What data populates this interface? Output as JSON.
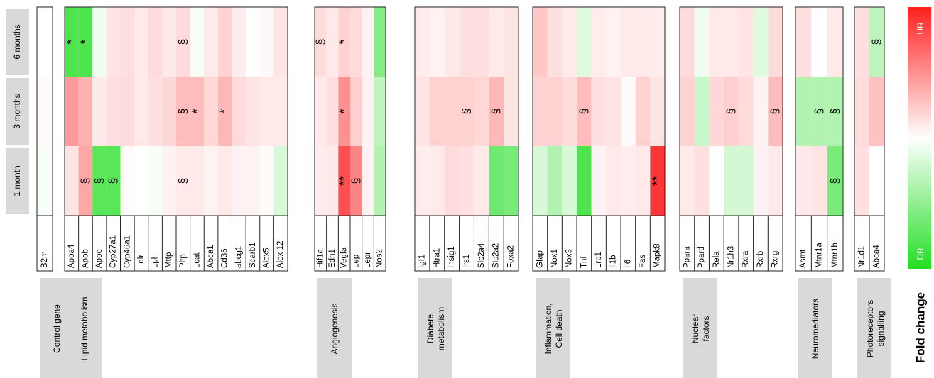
{
  "chart_data": {
    "type": "heatmap",
    "time_points": [
      "6 months",
      "3 months",
      "1 month"
    ],
    "control": {
      "group": "Control gene",
      "genes": [
        "B2m"
      ],
      "values": [
        [
          0.0
        ],
        [
          0.02
        ],
        [
          -0.03
        ]
      ]
    },
    "groups": [
      {
        "name": "Lipid metabolism",
        "genes": [
          "Apoa4",
          "Apob",
          "Apoe",
          "Cyp27a1",
          "Cyp46a1",
          "Ldlr",
          "Lpl",
          "Mttp",
          "Pltp",
          "Lcat",
          "Abca1",
          "Cd36",
          "abcg1",
          "Scarb1",
          "Alox5",
          "Alox 12"
        ],
        "values": [
          [
            -0.8,
            -0.8,
            -0.06,
            0.12,
            0.15,
            0.1,
            0.16,
            0.1,
            0.16,
            -0.04,
            0.1,
            0.2,
            0.08,
            0.0,
            0.03,
            0.12
          ],
          [
            0.45,
            0.35,
            0.1,
            0.14,
            0.16,
            0.1,
            0.14,
            0.18,
            0.3,
            0.3,
            0.18,
            0.32,
            0.16,
            0.12,
            0.1,
            0.1
          ],
          [
            0.12,
            0.4,
            -0.75,
            -0.75,
            0.02,
            0.0,
            -0.04,
            0.06,
            0.1,
            0.1,
            0.06,
            0.1,
            0.06,
            0.06,
            0.02,
            -0.18
          ]
        ],
        "annotations": [
          {
            "row": 0,
            "col": 0,
            "text": "*"
          },
          {
            "row": 0,
            "col": 1,
            "text": "*"
          },
          {
            "row": 0,
            "col": 8,
            "text": "§"
          },
          {
            "row": 1,
            "col": 8,
            "text": "§"
          },
          {
            "row": 1,
            "col": 9,
            "text": "*"
          },
          {
            "row": 1,
            "col": 11,
            "text": "*"
          },
          {
            "row": 2,
            "col": 1,
            "text": "§"
          },
          {
            "row": 2,
            "col": 2,
            "text": "§"
          },
          {
            "row": 2,
            "col": 3,
            "text": "§"
          },
          {
            "row": 2,
            "col": 8,
            "text": "§"
          }
        ]
      },
      {
        "name": "Angiogenesis",
        "genes": [
          "Hif1a",
          "Edn1",
          "Vegfa",
          "Lep",
          "Lepr",
          "Nos2"
        ],
        "values": [
          [
            0.16,
            0.1,
            0.2,
            0.16,
            0.06,
            -0.55
          ],
          [
            0.1,
            0.14,
            0.5,
            0.22,
            0.06,
            -0.3
          ],
          [
            0.08,
            0.1,
            0.78,
            0.55,
            0.06,
            -0.35
          ]
        ],
        "annotations": [
          {
            "row": 0,
            "col": 0,
            "text": "§"
          },
          {
            "row": 0,
            "col": 2,
            "text": "*"
          },
          {
            "row": 1,
            "col": 2,
            "text": "*"
          },
          {
            "row": 2,
            "col": 2,
            "text": "**"
          },
          {
            "row": 2,
            "col": 3,
            "text": "§"
          }
        ]
      },
      {
        "name": "Diabete metabolism",
        "genes": [
          "Igf1",
          "Htra1",
          "Insig1",
          "Irs1",
          "Slc2a4",
          "Slc2a2",
          "Foxa2"
        ],
        "values": [
          [
            0.08,
            0.06,
            0.1,
            0.14,
            0.14,
            0.1,
            0.12
          ],
          [
            0.12,
            0.2,
            0.2,
            0.2,
            0.18,
            0.32,
            0.12
          ],
          [
            0.08,
            0.1,
            0.16,
            0.14,
            0.1,
            -0.65,
            -0.6
          ]
        ],
        "annotations": [
          {
            "row": 1,
            "col": 3,
            "text": "§"
          },
          {
            "row": 1,
            "col": 5,
            "text": "§"
          }
        ]
      },
      {
        "name": "Inflammation, Cell death",
        "genes": [
          "Gfap",
          "Nox1",
          "Nox3",
          "Tnf",
          "Lrp1",
          "Il1b",
          "Il6",
          "Fas",
          "Mapk8"
        ],
        "values": [
          [
            0.25,
            0.14,
            0.1,
            -0.14,
            0.08,
            0.06,
            0.1,
            0.1,
            0.08
          ],
          [
            0.2,
            0.2,
            0.16,
            0.3,
            0.14,
            0.12,
            0.02,
            0.2,
            0.12
          ],
          [
            -0.18,
            -0.35,
            -0.18,
            -0.8,
            0.06,
            0.1,
            0.08,
            0.1,
            0.9
          ]
        ],
        "annotations": [
          {
            "row": 1,
            "col": 3,
            "text": "§"
          },
          {
            "row": 2,
            "col": 8,
            "text": "**"
          }
        ]
      },
      {
        "name": "Nuclear factors",
        "genes": [
          "Ppara",
          "Ppard",
          "Rela",
          "Nr1h3",
          "Rxra",
          "Rxrb",
          "Rxrg"
        ],
        "values": [
          [
            0.16,
            -0.06,
            0.1,
            0.1,
            0.12,
            -0.14,
            0.16
          ],
          [
            0.2,
            -0.25,
            0.18,
            0.22,
            0.16,
            0.06,
            0.3
          ],
          [
            0.1,
            0.14,
            0.0,
            -0.2,
            -0.2,
            0.06,
            0.1
          ]
        ],
        "annotations": [
          {
            "row": 1,
            "col": 3,
            "text": "§"
          },
          {
            "row": 1,
            "col": 6,
            "text": "§"
          }
        ]
      },
      {
        "name": "Neuromediators",
        "genes": [
          "Asmt",
          "Mtnr1a",
          "Mtnr1b"
        ],
        "values": [
          [
            0.14,
            0.0,
            0.1
          ],
          [
            -0.35,
            -0.35,
            -0.35
          ],
          [
            0.1,
            0.12,
            -0.6
          ]
        ],
        "annotations": [
          {
            "row": 1,
            "col": 1,
            "text": "§"
          },
          {
            "row": 1,
            "col": 2,
            "text": "§"
          },
          {
            "row": 2,
            "col": 2,
            "text": "§"
          }
        ]
      },
      {
        "name": "Photoreceptors signalling",
        "genes": [
          "Nr1d1",
          "Abca4"
        ],
        "values": [
          [
            0.14,
            -0.3
          ],
          [
            0.16,
            0.28
          ],
          [
            0.14,
            0.0
          ]
        ],
        "annotations": [
          {
            "row": 0,
            "col": 1,
            "text": "§"
          }
        ]
      }
    ],
    "legend": {
      "title": "Fold change",
      "high_label": "UR",
      "low_label": "DR",
      "high_color": "#ff2020",
      "mid_color": "#ffffff",
      "low_color": "#22dd22"
    }
  }
}
